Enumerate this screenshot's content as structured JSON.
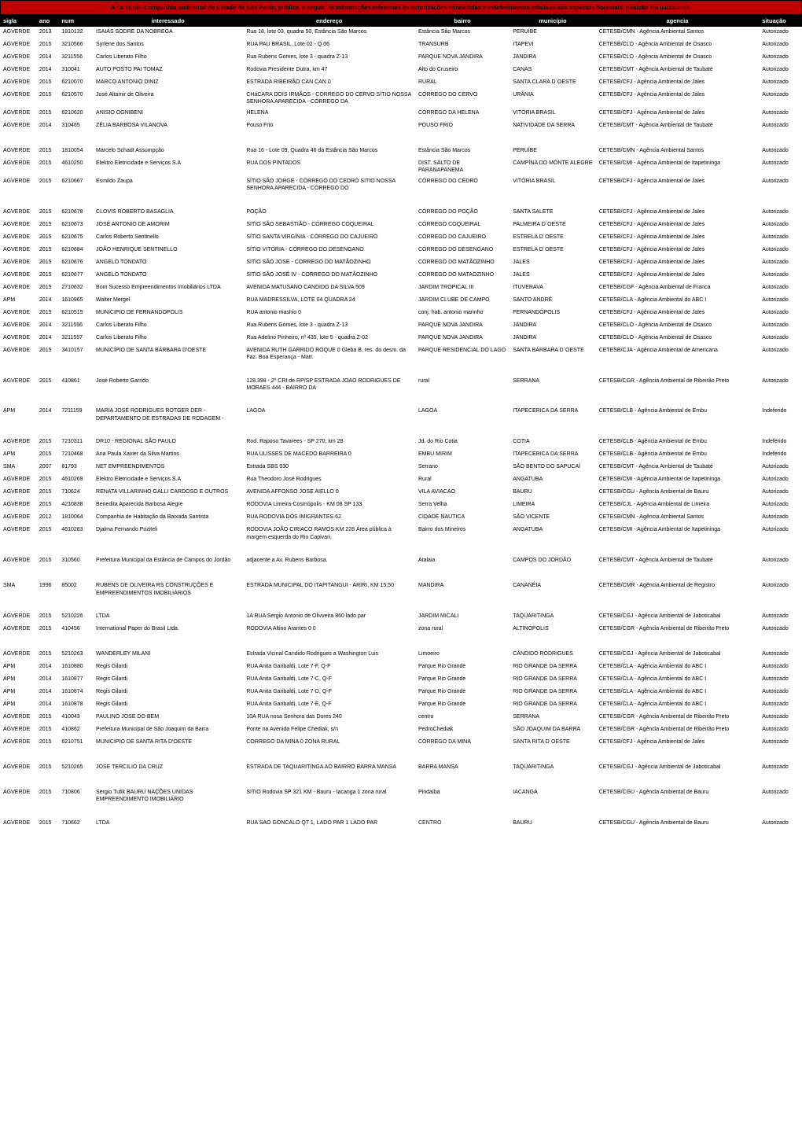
{
  "title": "A CETESB- Companhia Ambiental do Estado de São Paulo, publica, a seguir, as informações referentes às autorizações concedidas e indeferimentos relativos aos aspectos florestais, posição em 04/12/2016.",
  "columns": [
    "sigla",
    "ano",
    "num",
    "interessado",
    "endereço",
    "bairro",
    "município",
    "agencia",
    "situação"
  ],
  "rows": [
    [
      "AGVERDE",
      "2013",
      "1810132",
      "ISAIAS SODRE DA NOBREGA",
      "Rua 18, lote 03, quadra 50, Estância São Marcos",
      "Estância São Marcos",
      "PERUÍBE",
      "CETESB/CMN - Agência Ambiental Santos",
      "Autorizado"
    ],
    [
      "AGVERDE",
      "2015",
      "3210566",
      "Syrlene dos Santos",
      "RUA PAU BRASIL, Lote 02 - Q 06",
      "TRANSURB",
      "ITAPEVI",
      "CETESB/CLO - Agência Ambiental de Osasco",
      "Autorizado"
    ],
    [
      "AGVERDE",
      "2014",
      "3211556",
      "Carlos Liberato Filho",
      "Rua Rubens Gomes, lote 3 - quadra Z-13",
      "PARQUE NOVA JANDIRA",
      "JANDIRA",
      "CETESB/CLO - Agência Ambiental de Osasco",
      "Autorizado"
    ],
    [
      "AGVERDE",
      "2014",
      "310041",
      "AUTO POSTO PAI TOMAZ",
      "Rodovia Presidente Dutra, km 47",
      "Alto do Cruseiro",
      "CANAS",
      "CETESB/CMT - Agência Ambiental de Taubaté",
      "Autorizado"
    ],
    [
      "AGVERDE",
      "2015",
      "6210070",
      "MARCO ANTONIO DINIZ",
      "ESTRADA RIBEIRÃO CAN CAN 0",
      "RURAL",
      "SANTA CLARA D´OESTE",
      "CETESB/CFJ - Agência Ambiental de Jales",
      "Autorizado"
    ],
    [
      "AGVERDE",
      "2015",
      "6210570",
      "José Altamir de Oliveira",
      "CHáCARA DOIS IRMÃOS - CÓRREGO DO CERVO SÍTIO NOSSA SENHORA APARECIDA - CÓRREGO DA",
      "CÓRREGO DO CERVO",
      "URÂNIA",
      "CETESB/CFJ - Agência Ambiental de Jales",
      "Autorizado"
    ],
    [
      "AGVERDE",
      "2015",
      "6210620",
      "ANISIO OGNIBENI",
      "HELENA",
      "CÓRREGO DA HELENA",
      "VITÓRIA BRASIL",
      "CETESB/CFJ - Agência Ambiental de Jales",
      "Autorizado"
    ],
    [
      "AGVERDE",
      "2014",
      "310465",
      "ZÉLIA BARBOSA VILANOVA",
      "Pouso Frio",
      "POUSO FRIO",
      "NATIVIDADE DA SERRA",
      "CETESB/CMT - Agência Ambiental de Taubaté",
      "Autorizado"
    ],
    [
      "AGVERDE",
      "2015",
      "1810054",
      "Marcelo Schadt Assumpção",
      "Rua 16 - Lote 09, Quadra 46 da Estância São Marcos",
      "Estância São Marcos",
      "PERUÍBE",
      "CETESB/CMN - Agência Ambiental Santos",
      "Autorizado"
    ],
    [
      "AGVERDE",
      "2015",
      "4610250",
      "Elektro Eletricidade e Serviços S.A",
      "RUA DOS PINTADOS",
      "DIST. SALTO DE PARANAPANEMA",
      "CAMPINA DO MONTE ALEGRE",
      "CETESB/CMI - Agência Ambiental de Itapetininga",
      "Autorizado"
    ],
    [
      "AGVERDE",
      "2015",
      "6210667",
      "Esmildo Zaupa",
      "SÍTIO SÃO JORGE - CÓRREGO DO CEDRO SITIO NOSSA SENHORA APARECIDA - CÓRREGO DO",
      "CÓRREGO DO CEDRO",
      "VITÓRIA BRASIL",
      "CETESB/CFJ - Agência Ambiental de Jales",
      "Autorizado"
    ],
    [
      "AGVERDE",
      "2015",
      "6210678",
      "CLOVIS ROBERTO BASAGLIA",
      "POÇÃO",
      "CÓRREGO DO POÇÃO",
      "SANTA SALETE",
      "CETESB/CFJ - Agência Ambiental de Jales",
      "Autorizado"
    ],
    [
      "AGVERDE",
      "2015",
      "6210673",
      "JOSÉ ANTONIO DE AMORIM",
      "SITIO SÃO SEBASTIÃO - CÓRREGO COQUEIRAL",
      "CÓRREGO COQUEIRAL",
      "PALMEIRA D´OESTE",
      "CETESB/CFJ - Agência Ambiental de Jales",
      "Autorizado"
    ],
    [
      "AGVERDE",
      "2015",
      "6210675",
      "Carlos Roberto Sentinello",
      "SÍTIO SANTA VIRGÍNIA - CÓRREGO DO CAJUEIRO",
      "CÓRREGO DO CAJUEIRO",
      "ESTRELA D´OESTE",
      "CETESB/CFJ - Agência Ambiental de Jales",
      "Autorizado"
    ],
    [
      "AGVERDE",
      "2015",
      "6210684",
      "JOÃO HENRIQUE SENTINELLO",
      "SÍTIO VITÓRIA - CÓRREGO DO DESENGANO",
      "CÓRREGO DO DESENGANO",
      "ESTRELA D´OESTE",
      "CETESB/CFJ - Agência Ambiental de Jales",
      "Autorizado"
    ],
    [
      "AGVERDE",
      "2015",
      "6210676",
      "ANGELO TONDATO",
      "SITIO SÃO JOSE - CORREGO DO MATÃOZINHO",
      "CORREGO DO MATÃOZINHO",
      "JALES",
      "CETESB/CFJ - Agência Ambiental de Jales",
      "Autorizado"
    ],
    [
      "AGVERDE",
      "2015",
      "6210677",
      "ANGELO TONDATO",
      "SITIO SÃO JOSÉ IV - CORREGO DO MATÃOZINHO",
      "CORREGO DO MATAOZINHO",
      "JALES",
      "CETESB/CFJ - Agência Ambiental de Jales",
      "Autorizado"
    ],
    [
      "AGVERDE",
      "2015",
      "2710632",
      "Bom Sucesso Empreendimentos Imobiliários LTDA",
      "AVENIDA MATUSANO CANDIDO DA SILVA 509",
      "JARDIM TROPICAL III",
      "ITUVERAVA",
      "CETESB/CGF - Agência Ambiental de Franca",
      "Autorizado"
    ],
    [
      "APM",
      "2014",
      "1610965",
      "Walter Mergel",
      "RUA MADRESSILVA, LOTE 04 QUADRA 24",
      "JARDIM CLUBE DE CAMPO",
      "SANTO ANDRÉ",
      "CETESB/CLA - Agência Ambiental do ABC I",
      "Autorizado"
    ],
    [
      "AGVERDE",
      "2015",
      "6210515",
      "MUNICIPIO DE FERNANDOPOLIS",
      "RUA antonio mashio 0",
      "conj. hab. antonio marinho",
      "FERNANDÓPOLIS",
      "CETESB/CFJ - Agência Ambiental de Jales",
      "Autorizado"
    ],
    [
      "AGVERDE",
      "2014",
      "3211556",
      "Carlos Liberato Filho",
      "Rua Rubens Gomes, lote 3 - quadra Z-13",
      "PARQUE NOVA JANDIRA",
      "JANDIRA",
      "CETESB/CLO - Agência Ambiental de Osasco",
      "Autorizado"
    ],
    [
      "AGVERDE",
      "2014",
      "3211557",
      "Carlos Liberato Filho",
      "Rua Adelino Pinheiro, nº 435, lote 5 - quadra Z-02",
      "PARQUE NOVA JANDIRA",
      "JANDIRA",
      "CETESB/CLO - Agência Ambiental de Osasco",
      "Autorizado"
    ],
    [
      "AGVERDE",
      "2015",
      "3410157",
      "MUNICÍPIO DE SANTA BÁRBARA D'OESTE",
      "AVENIDA RUTH GARRIDO ROQUE 0 Gleba B, res. do desm. da Faz. Boa Esperança - Matr.",
      "PARQUE RESIDENCIAL DO LAGO",
      "SANTA BÁRBARA D´OESTE",
      "CETESB/CJA - Agência Ambiental de Americana",
      "Autorizado"
    ],
    [
      "AGVERDE",
      "2015",
      "410861",
      "José Roberto Garrido",
      "128.398 - 2º CRI de RP/SP ESTRADA JOAO RODRIGUES DE MORAES 444 - BAIRRO DA",
      "rural",
      "SERRANA",
      "CETESB/CGR - Agência Ambiental de Ribeirão Preto",
      "Autorizado"
    ],
    [
      "APM",
      "2014",
      "7211159",
      "MARIA JOSÉ RODRIGUES ROTGER DER - DEPARTAMENTO DE ESTRADAS DE RODAGEM -",
      "LAGOA",
      "LAGOA",
      "ITAPECERICA DA SERRA",
      "CETESB/CLB - Agência Ambiental de Embu",
      "Indeferido"
    ],
    [
      "AGVERDE",
      "2015",
      "7210311",
      "DR10 - REGIONAL SÃO PAULO",
      "Rod. Raposo Tavarees - SP 270, km 28",
      "Jd. do Rio Cotia",
      "COTIA",
      "CETESB/CLB - Agência Ambiental de Embu",
      "Indeferido"
    ],
    [
      "APM",
      "2015",
      "7210468",
      "Ana Paula Xavier da Silva Martins",
      "RUA ULISSES DE MACEDO BARREIRA 0",
      "EMBU MIRIM",
      "ITAPECERICA DA SERRA",
      "CETESB/CLB - Agência Ambiental de Embu",
      "Indeferido"
    ],
    [
      "SMA",
      "2007",
      "81793",
      "NET EMPREENDIMENTOS",
      "Estrada SBS 030",
      "Serrano",
      "SÃO BENTO DO SAPUCAÍ",
      "CETESB/CMT - Agência Ambiental de Taubaté",
      "Autorizado"
    ],
    [
      "AGVERDE",
      "2015",
      "4610269",
      "Elektro Eletricidade e Serviços S.A",
      "Rua Theodoro José Rodrigues",
      "Rural",
      "ANGATUBA",
      "CETESB/CMI - Agência Ambiental de Itapetininga",
      "Autorizado"
    ],
    [
      "AGVERDE",
      "2015",
      "710624",
      "RENATA VILLARINHO GALLI CARDOSO E OUTROS",
      "AVENIDA AFFONSO JOSE AIELLO 0",
      "VILA AVIACAO",
      "BAURU",
      "CETESB/CGU - Agência Ambiental de Bauru",
      "Autorizado"
    ],
    [
      "AGVERDE",
      "2015",
      "4210838",
      "Benedita Aparecida Barbosa Alegre",
      "RODOVIA Limeira-Cosmópolis - KM 08 SP 133",
      "Serra Velha",
      "LIMEIRA",
      "CETESB/CJL - Agência Ambiental de Limeira",
      "Autorizado"
    ],
    [
      "AGVERDE",
      "2012",
      "1810064",
      "Companhia de Habitação da Baixada Santista",
      "RUA RODOVIA DOS IMIGRANTES 62",
      "CIDADE NAUTICA",
      "SÃO VICENTE",
      "CETESB/CMN - Agência Ambiental Santos",
      "Autorizado"
    ],
    [
      "AGVERDE",
      "2015",
      "4610283",
      "Djalma Fernando Poziteli",
      "RODOVIA JOÃO CIRIACO RAMOS KM 228 Área pública à margem esquerda do Rio Capivari,",
      "Bairro dos Mineiros",
      "ANGATUBA",
      "CETESB/CMI - Agência Ambiental de Itapetininga",
      "Autorizado"
    ],
    [
      "AGVERDE",
      "2015",
      "310560",
      "Prefeitura Municipal da Estância de Campos do Jordão",
      "adjacente a Av. Rubens Barbosa.",
      "Atalaia",
      "CAMPOS DO JORDÃO",
      "CETESB/CMT - Agência Ambiental de Taubaté",
      "Autorizado"
    ],
    [
      "SMA",
      "1996",
      "85002",
      "RUBENS DE OLIVEIRA RS CONSTRUÇÕES E EMPREENDIMENTOS IMOBILIÁRIOS",
      "ESTRADA MUNICIPAL DO ITAPITANGUI - ARIRI, KM 15,50",
      "MANDIRA",
      "CANANÉIA",
      "CETESB/CMR - Agência Ambiental de Registro",
      "Autorizado"
    ],
    [
      "AGVERDE",
      "2015",
      "5210226",
      "LTDA",
      "1A RUA Sergio Antonio de Olivveira 860 lado par",
      "JARDIM MICALI",
      "TAQUARITINGA",
      "CETESB/CGJ - Agência Ambiental de Jaboticabal",
      "Autorizado"
    ],
    [
      "AGVERDE",
      "2015",
      "410456",
      "International Paper do Brasil Ltda.",
      "RODOVIA Altino Arantes 0 0",
      "zona rural",
      "ALTINÓPOLIS",
      "CETESB/CGR - Agência Ambiental de Ribeirão Preto",
      "Autorizado"
    ],
    [
      "AGVERDE",
      "2015",
      "5210263",
      "WANDERLEY MILANI",
      "Estrada Vicinal Candido Rodrigues a Washington Luis",
      "Limoeiro",
      "CÂNDIDO RODRIGUES",
      "CETESB/CGJ - Agência Ambiental de Jaboticabal",
      "Autorizado"
    ],
    [
      "APM",
      "2014",
      "1610880",
      "Regis Gilardi",
      "RUA Anita Garibaldi, Lote 7-F, Q-F",
      "Parque Rio Grande",
      "RIO GRANDE DA SERRA",
      "CETESB/CLA - Agência Ambiental do ABC I",
      "Autorizado"
    ],
    [
      "APM",
      "2014",
      "1610877",
      "Regis Gilardi",
      "RUA Anita Garibaldi, Lote 7-C, Q-F",
      "Parque Rio Grande",
      "RIO GRANDE DA SERRA",
      "CETESB/CLA - Agência Ambiental do ABC I",
      "Autorizado"
    ],
    [
      "APM",
      "2014",
      "1610874",
      "Regis Gilardi",
      "RUA Anita Garibaldi, Lote 7-D, Q-F",
      "Parque Rio Grande",
      "RIO GRANDE DA SERRA",
      "CETESB/CLA - Agência Ambiental do ABC I",
      "Autorizado"
    ],
    [
      "APM",
      "2014",
      "1610878",
      "Regis Gilardi",
      "RUA Anita Garibaldi, Lote 7-E, Q-F",
      "Parque Rio Grande",
      "RIO GRANDE DA SERRA",
      "CETESB/CLA - Agência Ambiental do ABC I",
      "Autorizado"
    ],
    [
      "AGVERDE",
      "2015",
      "410043",
      "PAULINO JOSE DO BEM",
      "10A RUA nosa Senhora das Dores 240",
      "centro",
      "SERRANA",
      "CETESB/CGR - Agência Ambiental de Ribeirão Preto",
      "Autorizado"
    ],
    [
      "AGVERDE",
      "2015",
      "410862",
      "Prefeitura Municipal de São Joaquim da Barra",
      "Ponte na Avenida Felipe Chediak, s/n",
      "PedroChediak",
      "SÃO JOAQUIM DA BARRA",
      "CETESB/CGR - Agência Ambiental de Ribeirão Preto",
      "Autorizado"
    ],
    [
      "AGVERDE",
      "2015",
      "6210751",
      "MUNICIPIO DE SANTA RITA D'OESTE",
      "CORREGO DA MINA 0 ZONA RURAL",
      "CÓRREGO DA MINA",
      "SANTA RITA D´OESTE",
      "CETESB/CFJ - Agência Ambiental de Jales",
      "Autorizado"
    ],
    [
      "AGVERDE",
      "2015",
      "5210265",
      "JOSE TERCILIO DA CRUZ",
      "ESTRADA DE TAQUARITINGA AO BAIRRO BARRA MANSA",
      "BARRA MANSA",
      "TAQUARITINGA",
      "CETESB/CGJ - Agência Ambiental de Jaboticabal",
      "Autorizado"
    ],
    [
      "AGVERDE",
      "2015",
      "710806",
      "Sergio Tufik BAURU NAÇÕES UNIDAS EMPREENDIMENTO IMOBILIÁRIO",
      "SITIO Rodovia SP 321 KM - Bauru - Iacanga 1 zona rural",
      "Pindaíba",
      "IACANGA",
      "CETESB/CGU - Agência Ambiental de Bauru",
      "Autorizado"
    ],
    [
      "AGVERDE",
      "2015",
      "710662",
      "LTDA",
      "RUA SAO GONCALO QT 1, LADO PAR 1 LADO PAR",
      "CENTRO",
      "BAURU",
      "CETESB/CGU - Agência Ambiental de Bauru",
      "Autorizado"
    ]
  ],
  "spacer_rows_after": [
    7,
    10,
    22,
    23,
    24,
    32,
    33,
    34,
    36,
    44,
    45,
    46
  ],
  "colors": {
    "title_bg": "#c00000",
    "header_bg": "#000000",
    "header_fg": "#ffffff",
    "body_bg": "#ffffff",
    "text": "#000000"
  },
  "font_sizes": {
    "title": 7.5,
    "header": 7.5,
    "body": 7
  }
}
